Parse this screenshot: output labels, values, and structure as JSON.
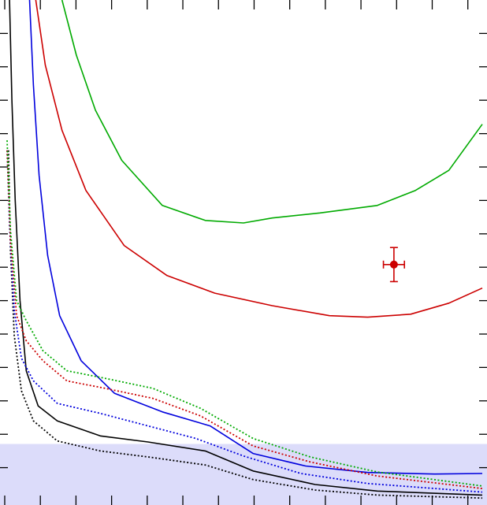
{
  "chart_data": {
    "type": "line",
    "title": "",
    "xlabel": "",
    "ylabel": "",
    "xlim": [
      0,
      1000
    ],
    "ylim": [
      0,
      1000
    ],
    "grid": false,
    "legend": "none",
    "shaded_band": {
      "y_from": 0,
      "y_to": 114,
      "color": "#dcdcfa"
    },
    "series": [
      {
        "color": "#00aa00",
        "style": "solid",
        "points": [
          [
            120,
            1000
          ],
          [
            150,
            890
          ],
          [
            190,
            780
          ],
          [
            245,
            680
          ],
          [
            330,
            590
          ],
          [
            420,
            560
          ],
          [
            500,
            555
          ],
          [
            560,
            565
          ],
          [
            660,
            575
          ],
          [
            780,
            590
          ],
          [
            860,
            620
          ],
          [
            930,
            660
          ],
          [
            1000,
            752
          ]
        ]
      },
      {
        "color": "#cc0000",
        "style": "solid",
        "points": [
          [
            65,
            1000
          ],
          [
            85,
            870
          ],
          [
            120,
            740
          ],
          [
            170,
            620
          ],
          [
            250,
            510
          ],
          [
            340,
            450
          ],
          [
            440,
            415
          ],
          [
            560,
            390
          ],
          [
            680,
            370
          ],
          [
            760,
            367
          ],
          [
            850,
            373
          ],
          [
            930,
            395
          ],
          [
            1000,
            425
          ]
        ]
      },
      {
        "color": "#0000dd",
        "style": "solid",
        "points": [
          [
            52,
            1000
          ],
          [
            60,
            830
          ],
          [
            72,
            650
          ],
          [
            90,
            490
          ],
          [
            115,
            370
          ],
          [
            160,
            280
          ],
          [
            230,
            215
          ],
          [
            330,
            178
          ],
          [
            430,
            150
          ],
          [
            520,
            95
          ],
          [
            630,
            70
          ],
          [
            760,
            57
          ],
          [
            900,
            54
          ],
          [
            1000,
            55
          ]
        ]
      },
      {
        "color": "#000000",
        "style": "solid",
        "points": [
          [
            10,
            1000
          ],
          [
            15,
            800
          ],
          [
            22,
            600
          ],
          [
            32,
            400
          ],
          [
            45,
            260
          ],
          [
            70,
            190
          ],
          [
            110,
            160
          ],
          [
            200,
            130
          ],
          [
            300,
            118
          ],
          [
            420,
            100
          ],
          [
            520,
            60
          ],
          [
            650,
            33
          ],
          [
            780,
            20
          ],
          [
            1000,
            12
          ]
        ]
      },
      {
        "color": "#000000",
        "style": "dotted",
        "points": [
          [
            8,
            700
          ],
          [
            12,
            500
          ],
          [
            20,
            330
          ],
          [
            35,
            220
          ],
          [
            60,
            160
          ],
          [
            110,
            120
          ],
          [
            200,
            100
          ],
          [
            300,
            88
          ],
          [
            420,
            72
          ],
          [
            520,
            43
          ],
          [
            650,
            22
          ],
          [
            780,
            12
          ],
          [
            1000,
            6
          ]
        ]
      },
      {
        "color": "#0000dd",
        "style": "dotted",
        "points": [
          [
            5,
            700
          ],
          [
            10,
            550
          ],
          [
            20,
            380
          ],
          [
            35,
            285
          ],
          [
            60,
            240
          ],
          [
            110,
            195
          ],
          [
            200,
            175
          ],
          [
            300,
            150
          ],
          [
            400,
            125
          ],
          [
            500,
            90
          ],
          [
            620,
            55
          ],
          [
            760,
            35
          ],
          [
            1000,
            18
          ]
        ]
      },
      {
        "color": "#cc0000",
        "style": "dotted",
        "points": [
          [
            5,
            700
          ],
          [
            12,
            520
          ],
          [
            25,
            370
          ],
          [
            45,
            320
          ],
          [
            80,
            280
          ],
          [
            130,
            240
          ],
          [
            210,
            225
          ],
          [
            310,
            205
          ],
          [
            410,
            170
          ],
          [
            520,
            110
          ],
          [
            640,
            78
          ],
          [
            780,
            50
          ],
          [
            1000,
            25
          ]
        ]
      },
      {
        "color": "#00aa00",
        "style": "dotted",
        "points": [
          [
            5,
            720
          ],
          [
            12,
            540
          ],
          [
            25,
            400
          ],
          [
            45,
            360
          ],
          [
            80,
            300
          ],
          [
            130,
            260
          ],
          [
            210,
            245
          ],
          [
            310,
            225
          ],
          [
            410,
            185
          ],
          [
            520,
            125
          ],
          [
            640,
            88
          ],
          [
            780,
            58
          ],
          [
            1000,
            30
          ]
        ]
      }
    ],
    "points": [
      {
        "x": 815,
        "y": 472,
        "xerr": 22,
        "yerr": 34,
        "color": "#cc0000"
      }
    ],
    "x_ticks": [
      0,
      74.6,
      149.2,
      223.8,
      298.4,
      373,
      447.6,
      522.2,
      596.8,
      671.4,
      746,
      820.6,
      895.2,
      969.8
    ],
    "y_ticks": [
      66.7,
      133.3,
      200,
      266.7,
      333.3,
      400,
      466.7,
      533.3,
      600,
      666.7,
      733.3,
      800,
      866.7,
      933.3
    ]
  }
}
